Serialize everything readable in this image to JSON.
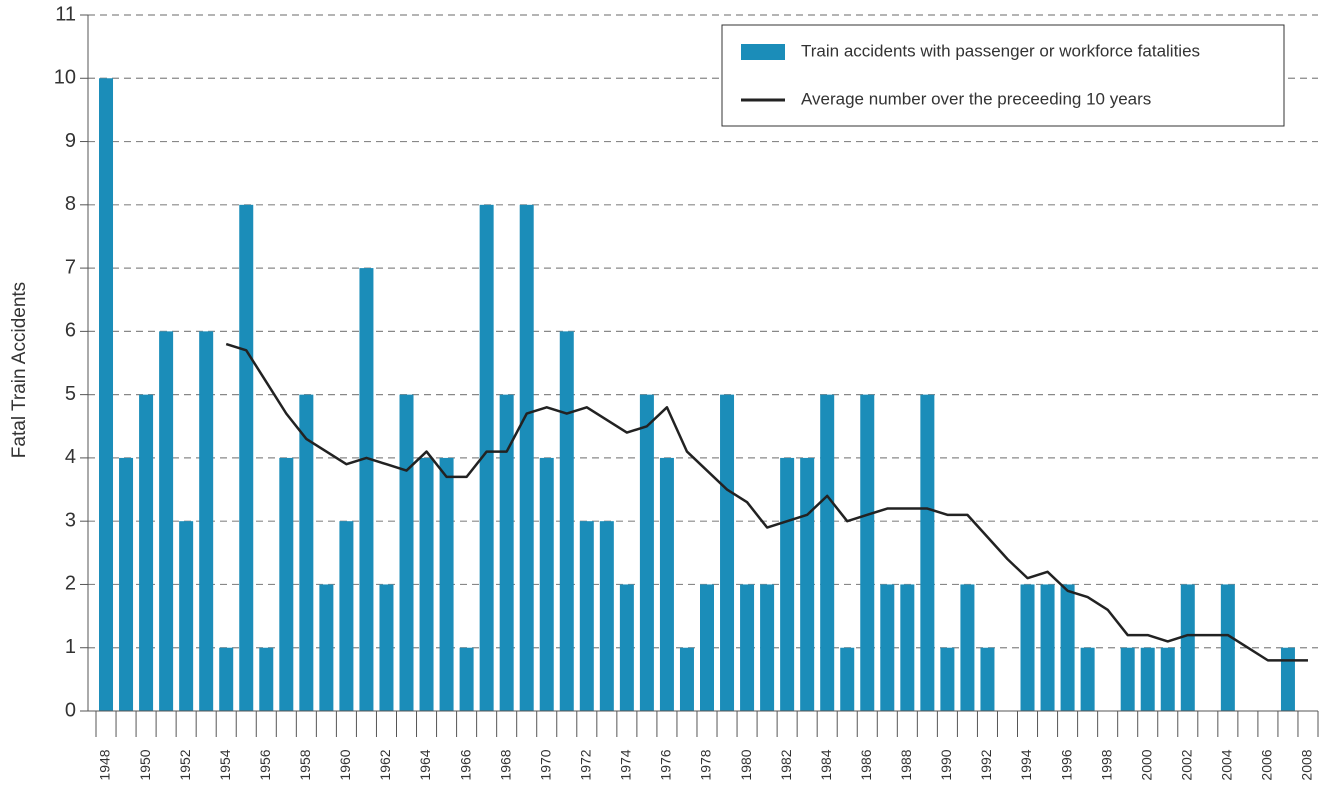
{
  "chart_data": {
    "type": "bar",
    "y_label": "Fatal Train Accidents",
    "categories": [
      "1948",
      null,
      "1950",
      null,
      "1952",
      null,
      "1954",
      null,
      "1956",
      null,
      "1958",
      null,
      "1960",
      null,
      "1962",
      null,
      "1964",
      null,
      "1966",
      null,
      "1968",
      null,
      "1970",
      null,
      "1972",
      null,
      "1974",
      null,
      "1976",
      null,
      "1978",
      null,
      "1980",
      null,
      "1982",
      null,
      "1984",
      null,
      "1986",
      null,
      "1988",
      null,
      "1990",
      null,
      "1992",
      null,
      "1994",
      null,
      "1996",
      null,
      "1998",
      null,
      "2000",
      null,
      "2002",
      null,
      "2004",
      null,
      "2006",
      null,
      "2008"
    ],
    "series": [
      {
        "name": "Train accidents with passenger or workforce fatalities",
        "type": "bar",
        "color": "#1b8db9",
        "values": [
          10,
          4,
          5,
          6,
          3,
          6,
          1,
          8,
          1,
          4,
          5,
          2,
          3,
          7,
          2,
          5,
          4,
          4,
          1,
          8,
          5,
          8,
          4,
          6,
          3,
          3,
          2,
          5,
          4,
          1,
          2,
          5,
          2,
          2,
          4,
          4,
          5,
          1,
          5,
          2,
          2,
          5,
          1,
          2,
          1,
          0,
          2,
          2,
          2,
          1,
          0,
          1,
          1,
          1,
          2,
          0,
          2,
          0,
          0,
          1,
          0
        ]
      },
      {
        "name": "Average number over the preceeding 10 years",
        "type": "line",
        "color": "#222222",
        "values": [
          null,
          null,
          null,
          null,
          null,
          null,
          5.8,
          5.7,
          5.2,
          4.7,
          4.3,
          4.1,
          3.9,
          4.0,
          3.9,
          3.8,
          4.1,
          3.7,
          3.7,
          4.1,
          4.1,
          4.7,
          4.8,
          4.7,
          4.8,
          4.6,
          4.4,
          4.5,
          4.8,
          4.1,
          3.8,
          3.5,
          3.3,
          2.9,
          3.0,
          3.1,
          3.4,
          3.0,
          3.1,
          3.2,
          3.2,
          3.2,
          3.1,
          3.1,
          2.75,
          2.4,
          2.1,
          2.2,
          1.9,
          1.8,
          1.6,
          1.2,
          1.2,
          1.1,
          1.2,
          1.2,
          1.2,
          1.0,
          0.8,
          0.8,
          0.8
        ]
      }
    ],
    "ylim": [
      0,
      11
    ],
    "yticks": [
      0,
      1,
      2,
      3,
      4,
      5,
      6,
      7,
      8,
      9,
      10,
      11
    ],
    "grid": true,
    "legend": "top-right"
  }
}
